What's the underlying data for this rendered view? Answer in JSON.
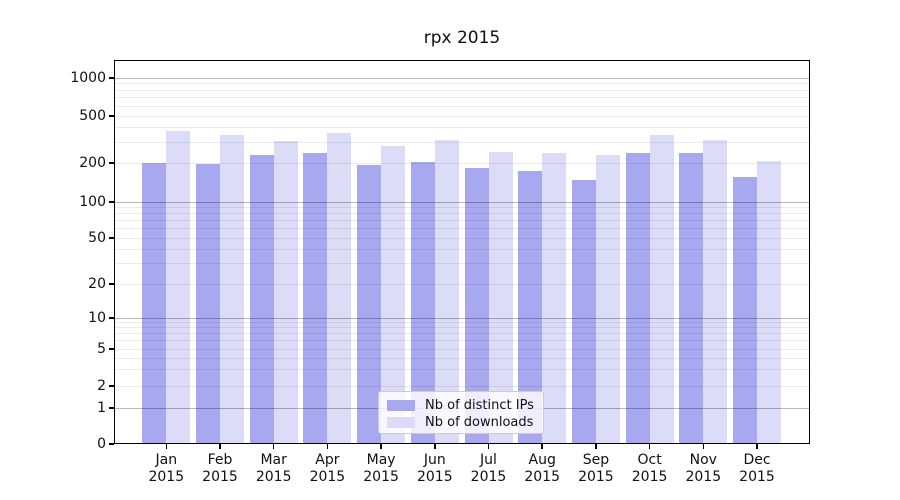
{
  "title": "rpx 2015",
  "colors": {
    "ips_bar": "#a8a8f0",
    "downloads_bar": "#dcdcf8",
    "axis": "#000000",
    "major_grid": "#b8b8b8",
    "minor_grid": "#ebebeb",
    "legend_border": "#cccccc"
  },
  "legend": {
    "items": [
      {
        "label": "Nb of distinct IPs",
        "color_key": "ips_bar"
      },
      {
        "label": "Nb of downloads",
        "color_key": "downloads_bar"
      }
    ]
  },
  "chart_data": {
    "type": "bar",
    "title": "rpx 2015",
    "categories": [
      "Jan",
      "Feb",
      "Mar",
      "Apr",
      "May",
      "Jun",
      "Jul",
      "Aug",
      "Sep",
      "Oct",
      "Nov",
      "Dec"
    ],
    "x_sublabel": "2015",
    "series": [
      {
        "name": "Nb of distinct IPs",
        "color": "#a8a8f0",
        "values": [
          200,
          197,
          232,
          243,
          192,
          203,
          184,
          173,
          149,
          245,
          243,
          155
        ]
      },
      {
        "name": "Nb of downloads",
        "color": "#dcdcf8",
        "values": [
          375,
          342,
          307,
          356,
          280,
          313,
          246,
          243,
          233,
          347,
          313,
          207
        ]
      }
    ],
    "yscale": "symlog",
    "yticks": [
      0,
      1,
      2,
      5,
      10,
      20,
      50,
      100,
      200,
      500,
      1000
    ],
    "ylim": [
      0,
      1400
    ],
    "xlabel": "",
    "ylabel": "",
    "grid": true,
    "legend_position": "lower center"
  }
}
